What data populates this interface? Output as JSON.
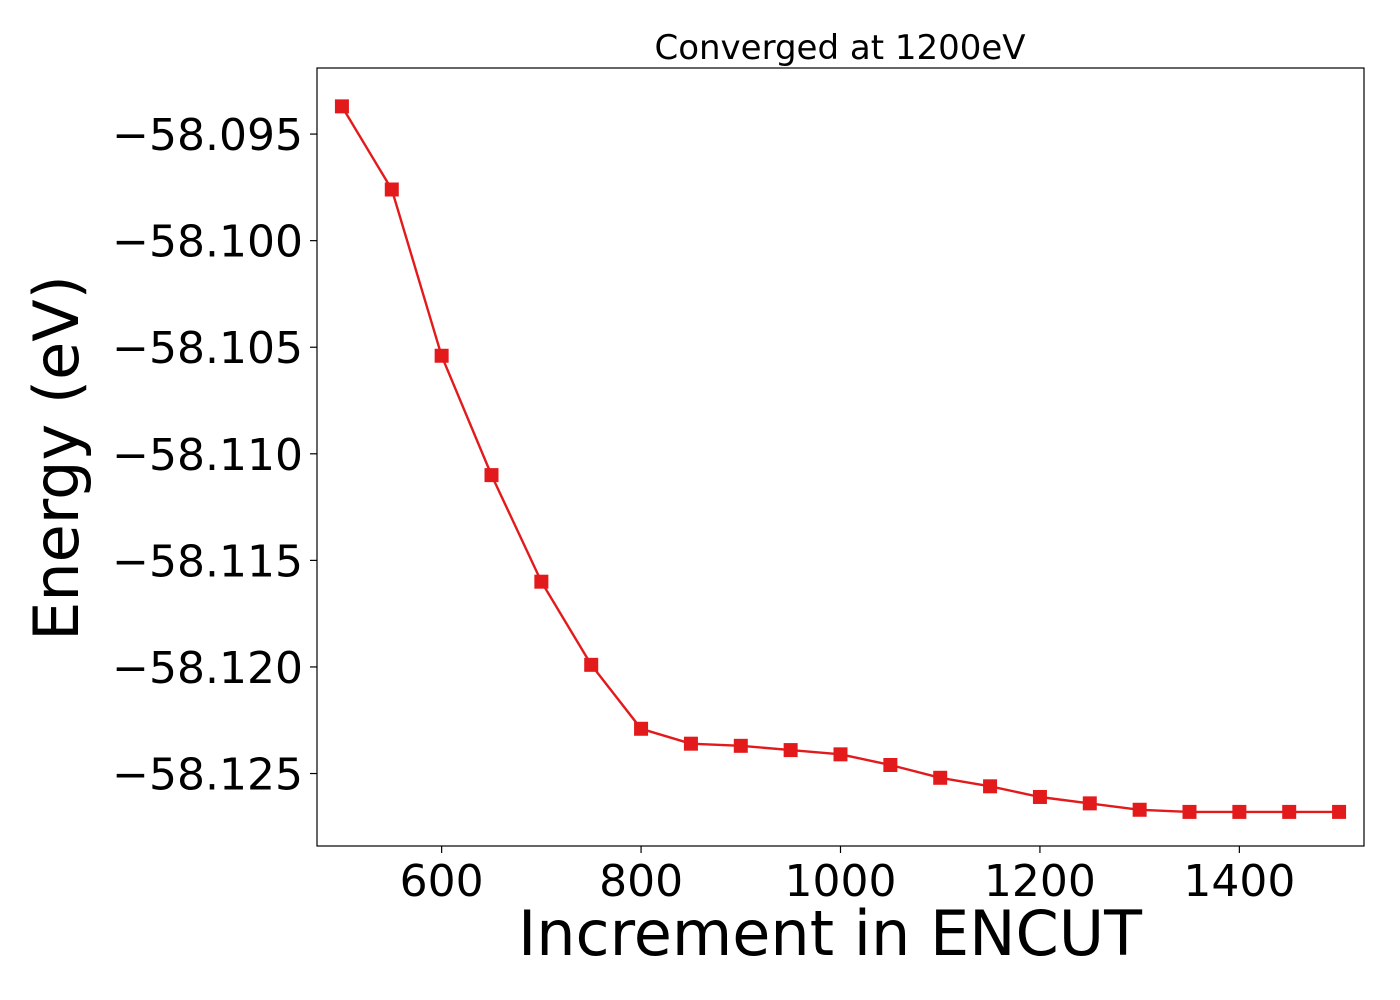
{
  "chart_data": {
    "type": "line",
    "title": "Converged at 1200eV",
    "xlabel": "Increment in ENCUT",
    "ylabel": "Energy (eV)",
    "xlim": [
      475,
      1525
    ],
    "ylim": [
      -58.1284,
      -58.0919
    ],
    "xticks": [
      600,
      800,
      1000,
      1200,
      1400
    ],
    "yticks": [
      -58.095,
      -58.1,
      -58.105,
      -58.11,
      -58.115,
      -58.12,
      -58.125
    ],
    "ytick_labels": [
      "−58.095",
      "−58.100",
      "−58.105",
      "−58.110",
      "−58.115",
      "−58.120",
      "−58.125"
    ],
    "grid": false,
    "legend": null,
    "series": [
      {
        "color": "#e31a1c",
        "marker": "square",
        "x": [
          500,
          550,
          600,
          650,
          700,
          750,
          800,
          850,
          900,
          950,
          1000,
          1050,
          1100,
          1150,
          1200,
          1250,
          1300,
          1350,
          1400,
          1450,
          1500
        ],
        "y": [
          -58.0937,
          -58.0976,
          -58.1054,
          -58.111,
          -58.116,
          -58.1199,
          -58.1229,
          -58.1236,
          -58.1237,
          -58.1239,
          -58.1241,
          -58.1246,
          -58.1252,
          -58.1256,
          -58.1261,
          -58.1264,
          -58.1267,
          -58.1268,
          -58.1268,
          -58.1268,
          -58.1268
        ]
      }
    ]
  }
}
